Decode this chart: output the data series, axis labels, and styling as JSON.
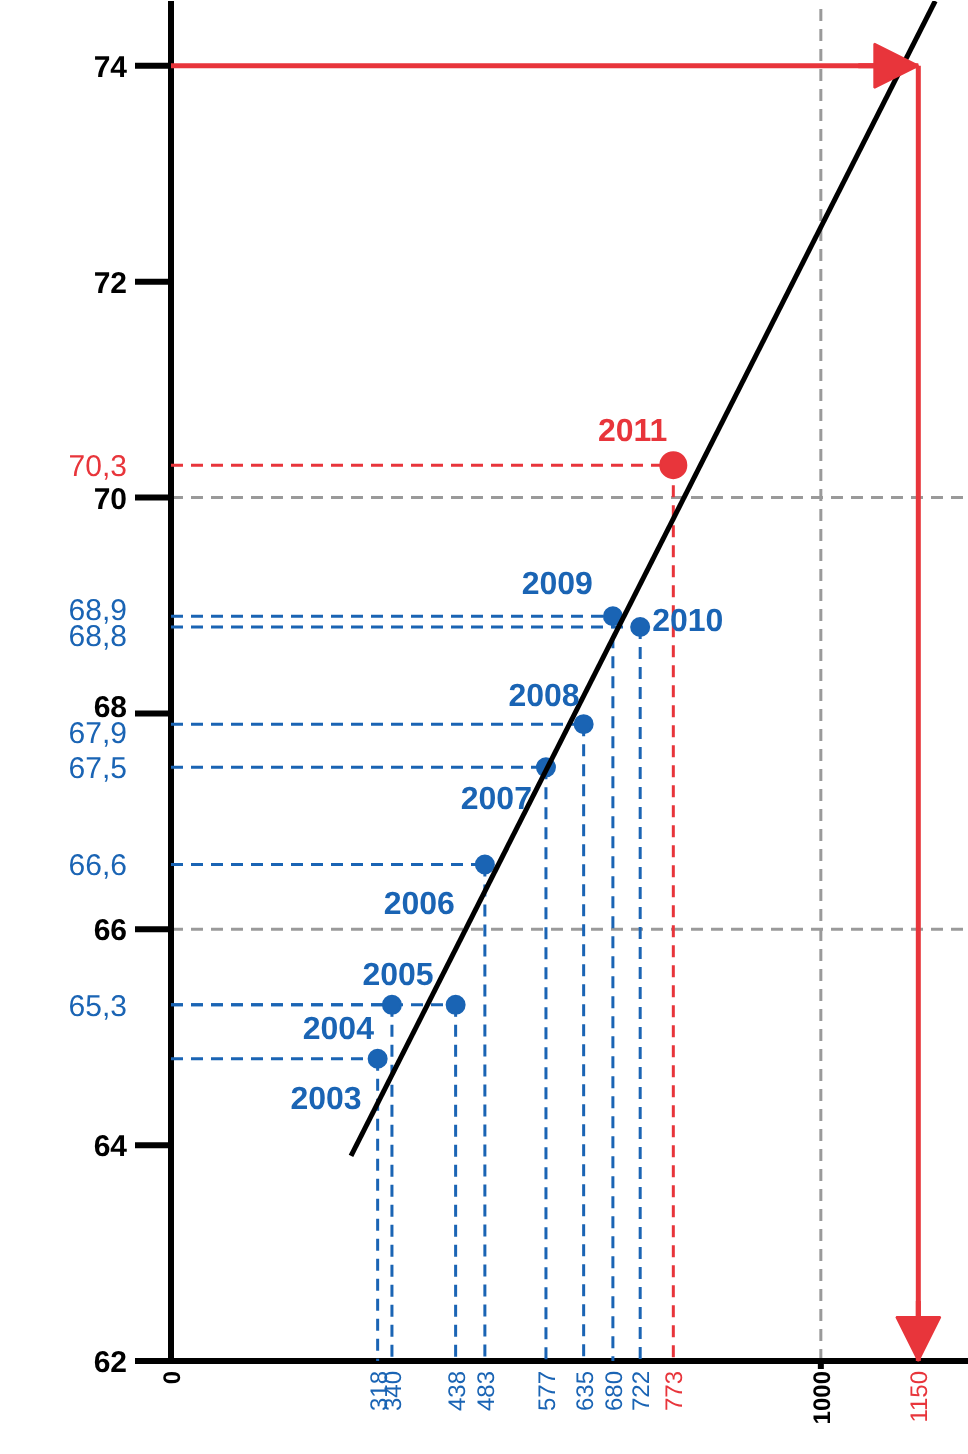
{
  "chart_data": {
    "type": "scatter",
    "xlim": [
      0,
      1228
    ],
    "ylim": [
      62,
      74.6
    ],
    "xticks": [
      0,
      {
        "value": 318,
        "label": "318"
      },
      {
        "value": 340,
        "label": "340"
      },
      {
        "value": 438,
        "label": "438"
      },
      {
        "value": 483,
        "label": "483"
      },
      {
        "value": 577,
        "label": "577"
      },
      {
        "value": 635,
        "label": "635"
      },
      {
        "value": 680,
        "label": "680"
      },
      {
        "value": 722,
        "label": "722"
      },
      {
        "value": 773,
        "label": "773"
      },
      1000,
      {
        "value": 1150,
        "label": "1150"
      }
    ],
    "yticks": [
      62,
      64,
      {
        "value": 65.3,
        "label": "65,3"
      },
      66,
      {
        "value": 66.6,
        "label": "66,6"
      },
      {
        "value": 67.5,
        "label": "67,5"
      },
      {
        "value": 67.9,
        "label": "67,9"
      },
      68,
      {
        "value": 68.8,
        "label": "68,8"
      },
      {
        "value": 68.9,
        "label": "68,9"
      },
      70,
      {
        "value": 70.3,
        "label": "70,3"
      },
      72,
      74
    ],
    "series": [
      {
        "color": "#1a64b4",
        "line_style": "dashed",
        "marker": "circle",
        "x": [
          318,
          340,
          438,
          483,
          577,
          635,
          680,
          722
        ],
        "values": [
          64.8,
          65.3,
          65.3,
          66.6,
          67.5,
          67.9,
          68.9,
          68.8
        ]
      },
      {
        "color": "#e8353b",
        "line_style": "dashed",
        "marker": "circle",
        "x": [
          773
        ],
        "values": [
          70.3
        ]
      },
      {
        "type": "line",
        "color": "#000000",
        "line_style": "solid",
        "marker": "none",
        "x": [
          277,
          1176
        ],
        "values": [
          63.9,
          74.6
        ]
      }
    ],
    "annotations": [
      {
        "text": "2003",
        "x": 318,
        "y": 64.8
      },
      {
        "text": "2004",
        "x": 340,
        "y": 65.3
      },
      {
        "text": "2005",
        "x": 438,
        "y": 65.3
      },
      {
        "text": "2006",
        "x": 483,
        "y": 66.6
      },
      {
        "text": "2007",
        "x": 577,
        "y": 67.5
      },
      {
        "text": "2008",
        "x": 635,
        "y": 67.9
      },
      {
        "text": "2009",
        "x": 680,
        "y": 68.9
      },
      {
        "text": "2010",
        "x": 722,
        "y": 68.8
      },
      {
        "text": "2011",
        "x": 773,
        "y": 70.3
      }
    ],
    "ref_lines": [
      {
        "axis": "y",
        "value": 70,
        "color": "#9a9a9a",
        "line_style": "dashed"
      },
      {
        "axis": "y",
        "value": 66,
        "color": "#9a9a9a",
        "line_style": "dashed"
      },
      {
        "axis": "x",
        "value": 1000,
        "color": "#9a9a9a",
        "line_style": "dashed"
      },
      {
        "axis": "y",
        "value": 74,
        "color": "#e8353b",
        "line_style": "solid"
      },
      {
        "axis": "x",
        "value": 1150,
        "color": "#e8353b",
        "line_style": "solid"
      }
    ],
    "grid": false
  }
}
